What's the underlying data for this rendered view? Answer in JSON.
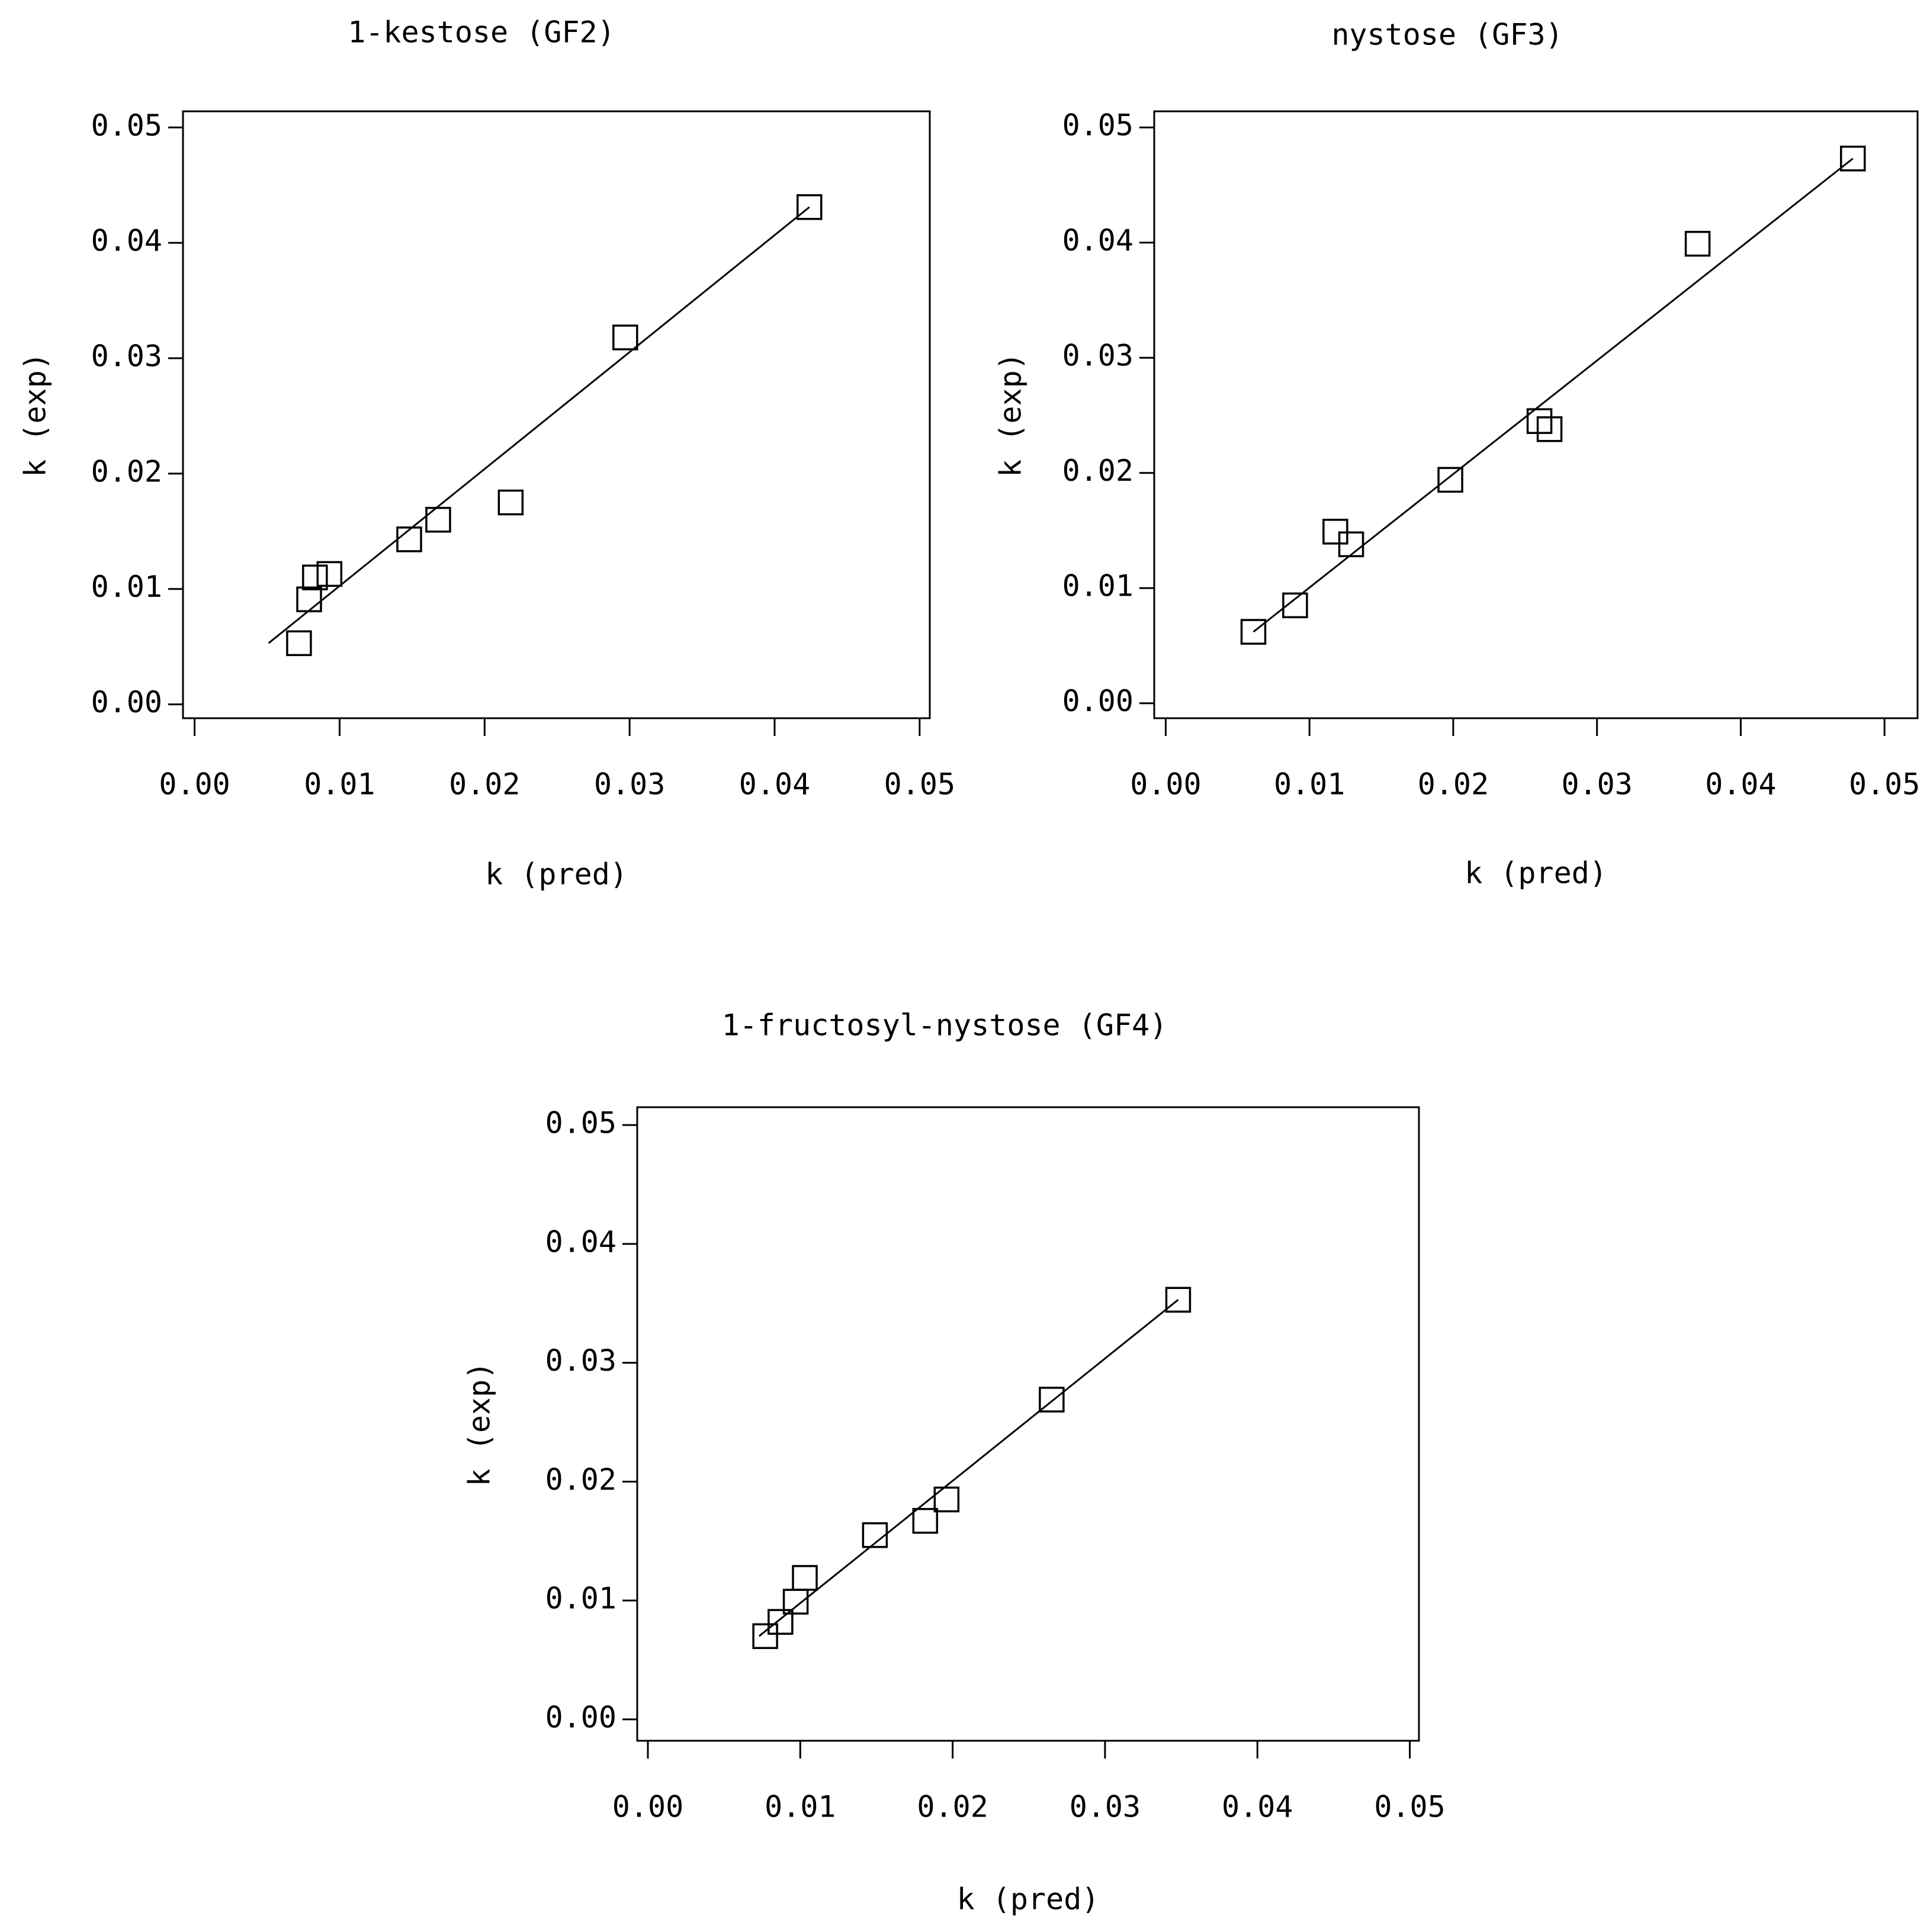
{
  "chart_data": [
    {
      "type": "scatter",
      "title": "1-kestose (GF2)",
      "x_label": "k (pred)",
      "y_label": "k (exp)",
      "x": [
        0.0072,
        0.0079,
        0.0083,
        0.0093,
        0.0148,
        0.0168,
        0.0218,
        0.0297,
        0.0424
      ],
      "values": [
        0.0053,
        0.0091,
        0.011,
        0.0113,
        0.0143,
        0.016,
        0.0175,
        0.0318,
        0.0431
      ],
      "fit_line": {
        "x": [
          0.0051,
          0.0424
        ],
        "values": [
          0.0053,
          0.0431
        ]
      },
      "color": "#000000",
      "xlim": [
        -0.0008,
        0.0507
      ],
      "ylim": [
        -0.0012,
        0.0514
      ],
      "xticks": [
        {
          "value": 0,
          "label": "0.00"
        },
        {
          "value": 0.01,
          "label": "0.01"
        },
        {
          "value": 0.02,
          "label": "0.02"
        },
        {
          "value": 0.03,
          "label": "0.03"
        },
        {
          "value": 0.04,
          "label": "0.04"
        },
        {
          "value": 0.05,
          "label": "0.05"
        }
      ],
      "yticks": [
        {
          "value": 0,
          "label": "0.00"
        },
        {
          "value": 0.01,
          "label": "0.01"
        },
        {
          "value": 0.02,
          "label": "0.02"
        },
        {
          "value": 0.03,
          "label": "0.03"
        },
        {
          "value": 0.04,
          "label": "0.04"
        },
        {
          "value": 0.05,
          "label": "0.05"
        }
      ]
    },
    {
      "type": "scatter",
      "title": "nystose (GF3)",
      "x_label": "k (pred)",
      "y_label": "k (exp)",
      "x": [
        0.0061,
        0.009,
        0.0118,
        0.0129,
        0.0198,
        0.026,
        0.0267,
        0.037,
        0.0478
      ],
      "values": [
        0.0062,
        0.0085,
        0.0149,
        0.0138,
        0.0194,
        0.0245,
        0.0238,
        0.0399,
        0.0473
      ],
      "fit_line": {
        "x": [
          0.0061,
          0.0478
        ],
        "values": [
          0.0062,
          0.0473
        ]
      },
      "color": "#000000",
      "xlim": [
        -0.0008,
        0.0523
      ],
      "ylim": [
        -0.0013,
        0.0514
      ],
      "xticks": [
        {
          "value": 0,
          "label": "0.00"
        },
        {
          "value": 0.01,
          "label": "0.01"
        },
        {
          "value": 0.02,
          "label": "0.02"
        },
        {
          "value": 0.03,
          "label": "0.03"
        },
        {
          "value": 0.04,
          "label": "0.04"
        },
        {
          "value": 0.05,
          "label": "0.05"
        }
      ],
      "yticks": [
        {
          "value": 0,
          "label": "0.00"
        },
        {
          "value": 0.01,
          "label": "0.01"
        },
        {
          "value": 0.02,
          "label": "0.02"
        },
        {
          "value": 0.03,
          "label": "0.03"
        },
        {
          "value": 0.04,
          "label": "0.04"
        },
        {
          "value": 0.05,
          "label": "0.05"
        }
      ]
    },
    {
      "type": "scatter",
      "title": "1-fructosyl-nystose (GF4)",
      "x_label": "k (pred)",
      "y_label": "k (exp)",
      "x": [
        0.0077,
        0.0087,
        0.0097,
        0.0103,
        0.0149,
        0.0182,
        0.0196,
        0.0265,
        0.0348
      ],
      "values": [
        0.007,
        0.0082,
        0.0099,
        0.0119,
        0.0155,
        0.0167,
        0.0185,
        0.0269,
        0.0353
      ],
      "fit_line": {
        "x": [
          0.0073,
          0.0348
        ],
        "values": [
          0.007,
          0.0353
        ]
      },
      "color": "#000000",
      "xlim": [
        -0.0007,
        0.0506
      ],
      "ylim": [
        -0.0018,
        0.0515
      ],
      "xticks": [
        {
          "value": 0,
          "label": "0.00"
        },
        {
          "value": 0.01,
          "label": "0.01"
        },
        {
          "value": 0.02,
          "label": "0.02"
        },
        {
          "value": 0.03,
          "label": "0.03"
        },
        {
          "value": 0.04,
          "label": "0.04"
        },
        {
          "value": 0.05,
          "label": "0.05"
        }
      ],
      "yticks": [
        {
          "value": 0,
          "label": "0.00"
        },
        {
          "value": 0.01,
          "label": "0.01"
        },
        {
          "value": 0.02,
          "label": "0.02"
        },
        {
          "value": 0.03,
          "label": "0.03"
        },
        {
          "value": 0.04,
          "label": "0.04"
        },
        {
          "value": 0.05,
          "label": "0.05"
        }
      ]
    }
  ]
}
